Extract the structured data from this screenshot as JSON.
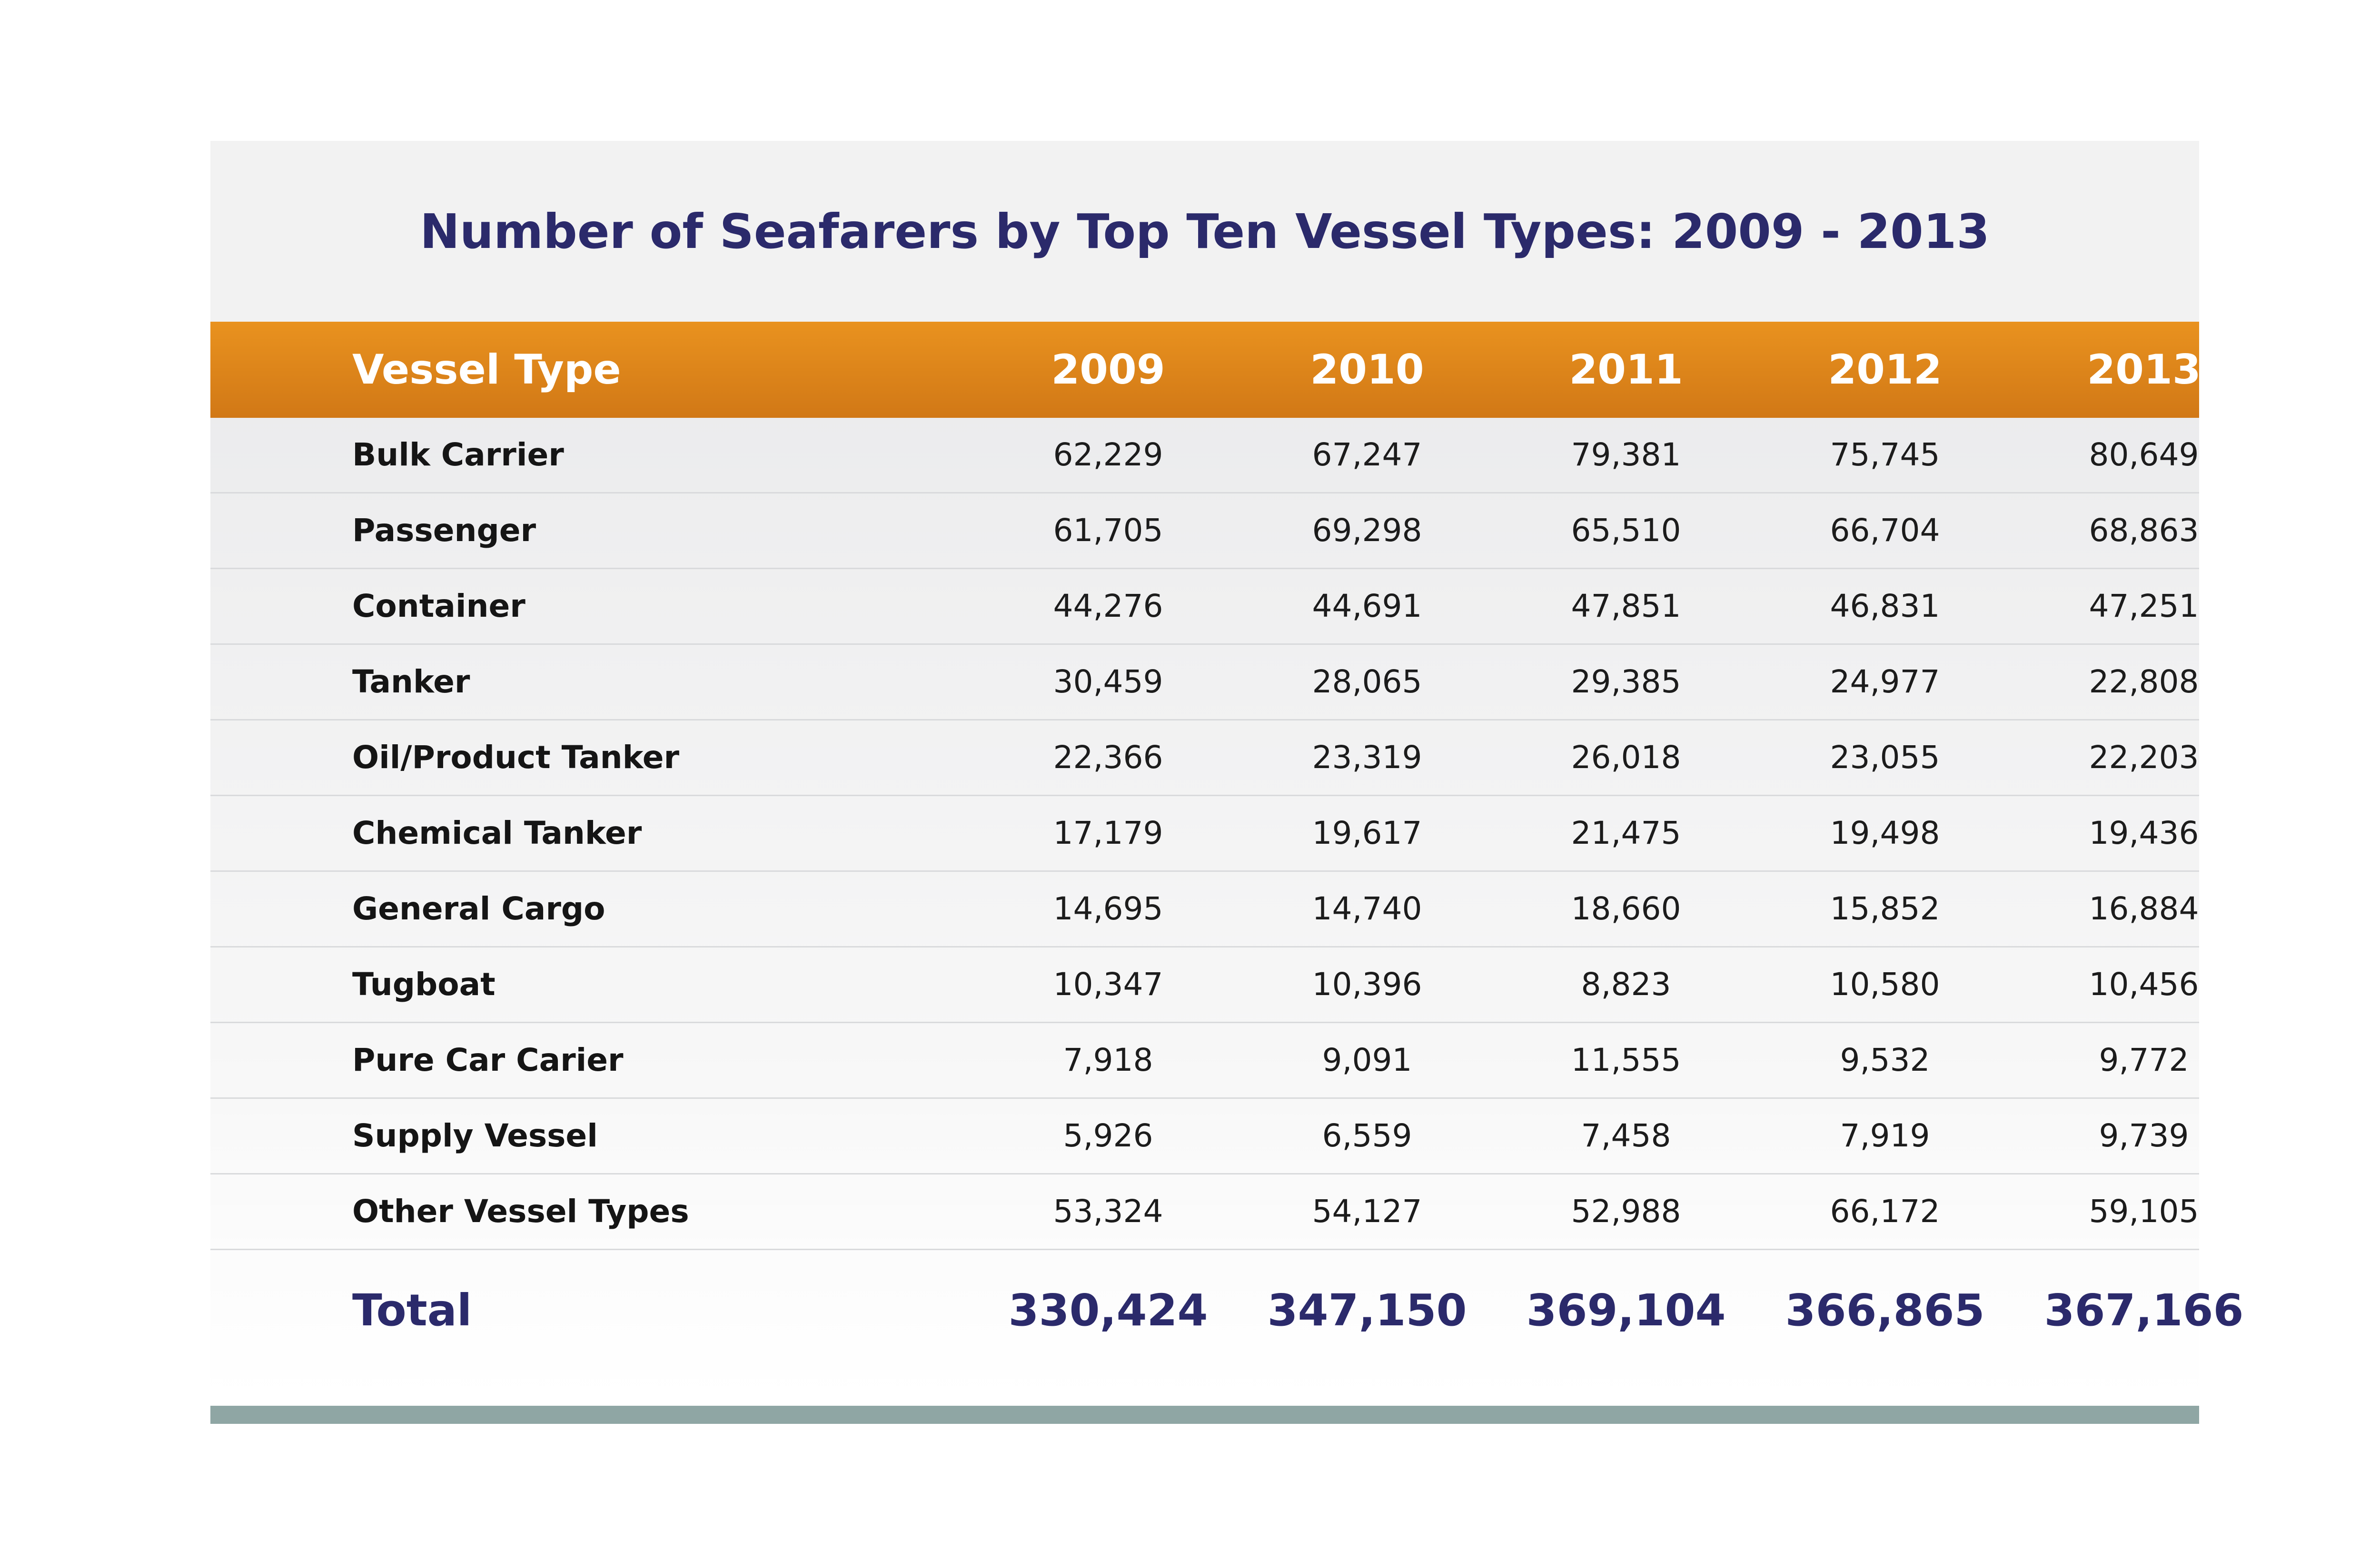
{
  "chart_data": {
    "type": "table",
    "title": "Number of Seafarers by Top Ten Vessel Types: 2009 - 2013",
    "columns": [
      "Vessel Type",
      "2009",
      "2010",
      "2011",
      "2012",
      "2013"
    ],
    "rows": [
      {
        "label": "Bulk Carrier",
        "values": [
          "62,229",
          "67,247",
          "79,381",
          "75,745",
          "80,649"
        ]
      },
      {
        "label": "Passenger",
        "values": [
          "61,705",
          "69,298",
          "65,510",
          "66,704",
          "68,863"
        ]
      },
      {
        "label": "Container",
        "values": [
          "44,276",
          "44,691",
          "47,851",
          "46,831",
          "47,251"
        ]
      },
      {
        "label": "Tanker",
        "values": [
          "30,459",
          "28,065",
          "29,385",
          "24,977",
          "22,808"
        ]
      },
      {
        "label": "Oil/Product Tanker",
        "values": [
          "22,366",
          "23,319",
          "26,018",
          "23,055",
          "22,203"
        ]
      },
      {
        "label": "Chemical Tanker",
        "values": [
          "17,179",
          "19,617",
          "21,475",
          "19,498",
          "19,436"
        ]
      },
      {
        "label": "General Cargo",
        "values": [
          "14,695",
          "14,740",
          "18,660",
          "15,852",
          "16,884"
        ]
      },
      {
        "label": "Tugboat",
        "values": [
          "10,347",
          "10,396",
          "8,823",
          "10,580",
          "10,456"
        ]
      },
      {
        "label": "Pure Car Carier",
        "values": [
          "7,918",
          "9,091",
          "11,555",
          "9,532",
          "9,772"
        ]
      },
      {
        "label": "Supply Vessel",
        "values": [
          "5,926",
          "6,559",
          "7,458",
          "7,919",
          "9,739"
        ]
      },
      {
        "label": "Other Vessel Types",
        "values": [
          "53,324",
          "54,127",
          "52,988",
          "66,172",
          "59,105"
        ]
      }
    ],
    "total": {
      "label": "Total",
      "values": [
        "330,424",
        "347,150",
        "369,104",
        "366,865",
        "367,166"
      ]
    }
  },
  "colors": {
    "title_text": "#2b2a6b",
    "header_orange": "#e38a1c",
    "total_text": "#2b2a6b",
    "bottom_bar": "#8fa6a4"
  }
}
